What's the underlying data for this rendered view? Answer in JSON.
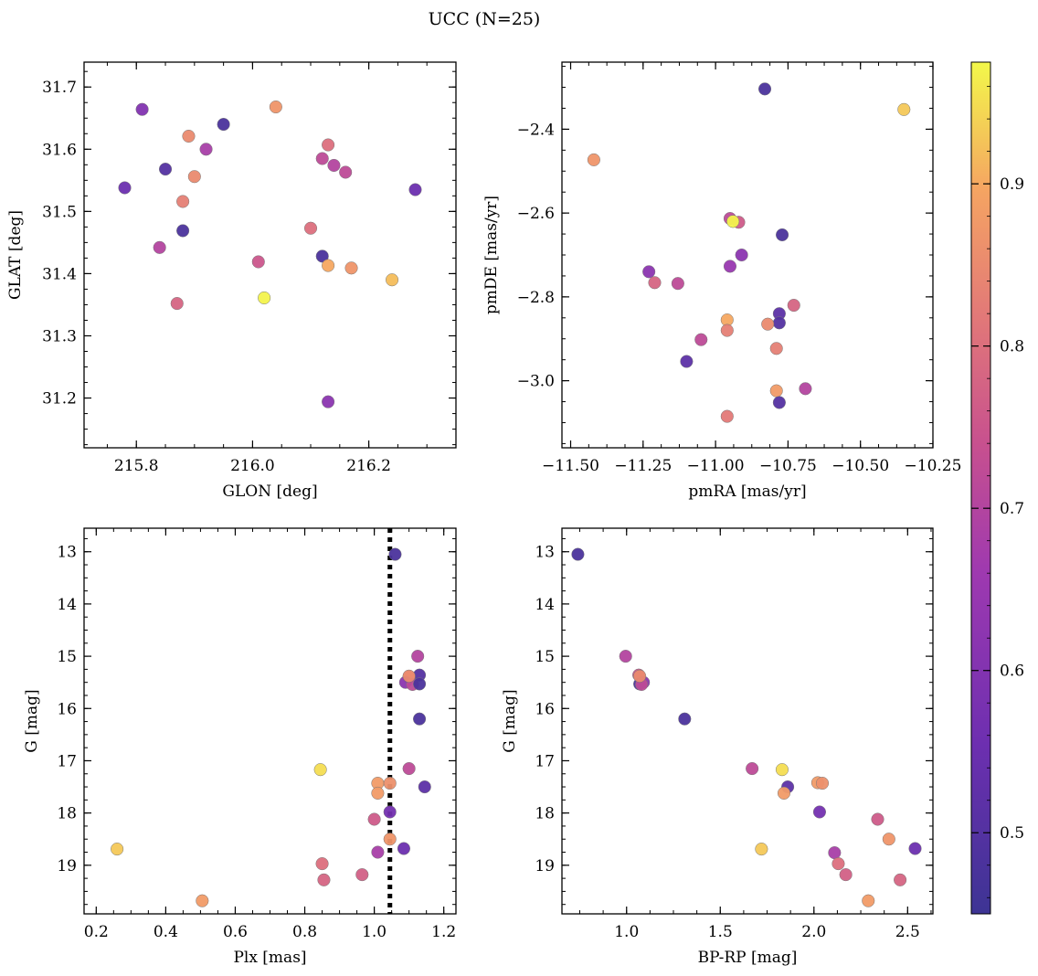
{
  "title": "UCC (N=25)",
  "colorbar": {
    "range": [
      0.45,
      0.975
    ],
    "ticks": [
      0.5,
      0.6,
      0.7,
      0.8,
      0.9
    ]
  },
  "chart_data": [
    {
      "type": "scatter",
      "xlabel": "GLON [deg]",
      "ylabel": "GLAT [deg]",
      "xlim": [
        215.71,
        216.35
      ],
      "ylim": [
        31.12,
        31.74
      ],
      "y_inverted": false,
      "xticks": [
        "215.8",
        "216.0",
        "216.2"
      ],
      "xtick_values": [
        215.8,
        216.0,
        216.2
      ],
      "yticks": [
        "31.2",
        "31.3",
        "31.4",
        "31.5",
        "31.6",
        "31.7"
      ],
      "ytick_values": [
        31.2,
        31.3,
        31.4,
        31.5,
        31.6,
        31.7
      ],
      "points": [
        {
          "x": 215.81,
          "y": 31.664,
          "c": 0.6
        },
        {
          "x": 215.78,
          "y": 31.538,
          "c": 0.55
        },
        {
          "x": 215.85,
          "y": 31.568,
          "c": 0.5
        },
        {
          "x": 215.84,
          "y": 31.442,
          "c": 0.7
        },
        {
          "x": 215.89,
          "y": 31.621,
          "c": 0.85
        },
        {
          "x": 215.92,
          "y": 31.6,
          "c": 0.68
        },
        {
          "x": 215.9,
          "y": 31.556,
          "c": 0.85
        },
        {
          "x": 215.88,
          "y": 31.516,
          "c": 0.83
        },
        {
          "x": 215.88,
          "y": 31.469,
          "c": 0.48
        },
        {
          "x": 215.87,
          "y": 31.352,
          "c": 0.78
        },
        {
          "x": 215.95,
          "y": 31.64,
          "c": 0.48
        },
        {
          "x": 216.04,
          "y": 31.668,
          "c": 0.87
        },
        {
          "x": 216.01,
          "y": 31.419,
          "c": 0.75
        },
        {
          "x": 216.02,
          "y": 31.361,
          "c": 0.97
        },
        {
          "x": 216.13,
          "y": 31.607,
          "c": 0.8
        },
        {
          "x": 216.12,
          "y": 31.585,
          "c": 0.72
        },
        {
          "x": 216.14,
          "y": 31.574,
          "c": 0.7
        },
        {
          "x": 216.16,
          "y": 31.563,
          "c": 0.72
        },
        {
          "x": 216.1,
          "y": 31.473,
          "c": 0.8
        },
        {
          "x": 216.12,
          "y": 31.428,
          "c": 0.48
        },
        {
          "x": 216.13,
          "y": 31.413,
          "c": 0.9
        },
        {
          "x": 216.17,
          "y": 31.409,
          "c": 0.87
        },
        {
          "x": 216.24,
          "y": 31.39,
          "c": 0.92
        },
        {
          "x": 216.28,
          "y": 31.535,
          "c": 0.55
        },
        {
          "x": 216.13,
          "y": 31.194,
          "c": 0.62
        }
      ]
    },
    {
      "type": "scatter",
      "xlabel": "pmRA [mas/yr]",
      "ylabel": "pmDE [mas/yr]",
      "xlim": [
        -11.53,
        -10.25
      ],
      "ylim": [
        -3.16,
        -2.24
      ],
      "y_inverted": false,
      "xticks": [
        "−11.50",
        "−11.25",
        "−11.00",
        "−10.75",
        "−10.50",
        "−10.25"
      ],
      "xtick_values": [
        -11.5,
        -11.25,
        -11.0,
        -10.75,
        -10.5,
        -10.25
      ],
      "yticks": [
        "−2.4",
        "−2.6",
        "−2.8",
        "−3.0"
      ],
      "ytick_values": [
        -2.4,
        -2.6,
        -2.8,
        -3.0
      ],
      "points": [
        {
          "x": -10.83,
          "y": -2.304,
          "c": 0.48
        },
        {
          "x": -10.35,
          "y": -2.353,
          "c": 0.93
        },
        {
          "x": -11.42,
          "y": -2.473,
          "c": 0.87
        },
        {
          "x": -10.95,
          "y": -2.613,
          "c": 0.72
        },
        {
          "x": -10.92,
          "y": -2.622,
          "c": 0.76
        },
        {
          "x": -10.94,
          "y": -2.62,
          "c": 0.97
        },
        {
          "x": -10.77,
          "y": -2.652,
          "c": 0.48
        },
        {
          "x": -10.95,
          "y": -2.727,
          "c": 0.65
        },
        {
          "x": -10.91,
          "y": -2.7,
          "c": 0.62
        },
        {
          "x": -11.23,
          "y": -2.74,
          "c": 0.62
        },
        {
          "x": -11.21,
          "y": -2.766,
          "c": 0.78
        },
        {
          "x": -11.13,
          "y": -2.768,
          "c": 0.72
        },
        {
          "x": -10.73,
          "y": -2.82,
          "c": 0.78
        },
        {
          "x": -10.78,
          "y": -2.84,
          "c": 0.52
        },
        {
          "x": -10.78,
          "y": -2.862,
          "c": 0.5
        },
        {
          "x": -10.82,
          "y": -2.865,
          "c": 0.85
        },
        {
          "x": -10.96,
          "y": -2.855,
          "c": 0.9
        },
        {
          "x": -10.96,
          "y": -2.88,
          "c": 0.83
        },
        {
          "x": -11.05,
          "y": -2.902,
          "c": 0.72
        },
        {
          "x": -10.79,
          "y": -2.923,
          "c": 0.83
        },
        {
          "x": -11.1,
          "y": -2.954,
          "c": 0.52
        },
        {
          "x": -10.69,
          "y": -3.019,
          "c": 0.7
        },
        {
          "x": -10.79,
          "y": -3.024,
          "c": 0.88
        },
        {
          "x": -10.78,
          "y": -3.052,
          "c": 0.5
        },
        {
          "x": -10.96,
          "y": -3.085,
          "c": 0.82
        }
      ]
    },
    {
      "type": "scatter",
      "xlabel": "Plx [mas]",
      "ylabel": "G [mag]",
      "xlim": [
        0.165,
        1.235
      ],
      "ylim": [
        12.55,
        19.93
      ],
      "y_inverted": true,
      "vline": 1.045,
      "xticks": [
        "0.2",
        "0.4",
        "0.6",
        "0.8",
        "1.0",
        "1.2"
      ],
      "xtick_values": [
        0.2,
        0.4,
        0.6,
        0.8,
        1.0,
        1.2
      ],
      "yticks": [
        "13",
        "14",
        "15",
        "16",
        "17",
        "18",
        "19"
      ],
      "ytick_values": [
        13,
        14,
        15,
        16,
        17,
        18,
        19
      ],
      "points": [
        {
          "x": 1.06,
          "y": 13.05,
          "c": 0.48
        },
        {
          "x": 1.125,
          "y": 15.0,
          "c": 0.7
        },
        {
          "x": 1.13,
          "y": 15.36,
          "c": 0.5
        },
        {
          "x": 1.1,
          "y": 15.4,
          "c": 0.87
        },
        {
          "x": 1.09,
          "y": 15.5,
          "c": 0.62
        },
        {
          "x": 1.11,
          "y": 15.54,
          "c": 0.72
        },
        {
          "x": 1.13,
          "y": 15.53,
          "c": 0.48
        },
        {
          "x": 1.13,
          "y": 16.2,
          "c": 0.48
        },
        {
          "x": 1.1,
          "y": 17.15,
          "c": 0.72
        },
        {
          "x": 0.845,
          "y": 17.17,
          "c": 0.95
        },
        {
          "x": 1.145,
          "y": 17.5,
          "c": 0.52
        },
        {
          "x": 1.01,
          "y": 17.43,
          "c": 0.88
        },
        {
          "x": 1.045,
          "y": 17.43,
          "c": 0.86
        },
        {
          "x": 1.01,
          "y": 17.62,
          "c": 0.88
        },
        {
          "x": 1.045,
          "y": 17.98,
          "c": 0.57
        },
        {
          "x": 1.0,
          "y": 18.12,
          "c": 0.76
        },
        {
          "x": 1.045,
          "y": 18.5,
          "c": 0.87
        },
        {
          "x": 1.01,
          "y": 18.75,
          "c": 0.68
        },
        {
          "x": 1.085,
          "y": 18.68,
          "c": 0.55
        },
        {
          "x": 0.26,
          "y": 18.69,
          "c": 0.93
        },
        {
          "x": 0.85,
          "y": 18.97,
          "c": 0.8
        },
        {
          "x": 0.855,
          "y": 19.28,
          "c": 0.78
        },
        {
          "x": 0.965,
          "y": 19.18,
          "c": 0.77
        },
        {
          "x": 0.505,
          "y": 19.68,
          "c": 0.88
        },
        {
          "x": 1.1,
          "y": 15.38,
          "c": 0.85
        }
      ]
    },
    {
      "type": "scatter",
      "xlabel": "BP-RP [mag]",
      "ylabel": "G [mag]",
      "xlim": [
        0.655,
        2.635
      ],
      "ylim": [
        12.55,
        19.93
      ],
      "y_inverted": true,
      "xticks": [
        "1.0",
        "1.5",
        "2.0",
        "2.5"
      ],
      "xtick_values": [
        1.0,
        1.5,
        2.0,
        2.5
      ],
      "yticks": [
        "13",
        "14",
        "15",
        "16",
        "17",
        "18",
        "19"
      ],
      "ytick_values": [
        13,
        14,
        15,
        16,
        17,
        18,
        19
      ],
      "points": [
        {
          "x": 0.74,
          "y": 13.05,
          "c": 0.48
        },
        {
          "x": 0.995,
          "y": 15.0,
          "c": 0.7
        },
        {
          "x": 1.065,
          "y": 15.36,
          "c": 0.75
        },
        {
          "x": 1.07,
          "y": 15.53,
          "c": 0.48
        },
        {
          "x": 1.09,
          "y": 15.5,
          "c": 0.62
        },
        {
          "x": 1.08,
          "y": 15.54,
          "c": 0.72
        },
        {
          "x": 1.07,
          "y": 15.38,
          "c": 0.85
        },
        {
          "x": 1.31,
          "y": 16.2,
          "c": 0.48
        },
        {
          "x": 1.67,
          "y": 17.15,
          "c": 0.72
        },
        {
          "x": 1.83,
          "y": 17.17,
          "c": 0.95
        },
        {
          "x": 1.86,
          "y": 17.5,
          "c": 0.52
        },
        {
          "x": 2.02,
          "y": 17.42,
          "c": 0.88
        },
        {
          "x": 2.045,
          "y": 17.43,
          "c": 0.86
        },
        {
          "x": 1.84,
          "y": 17.62,
          "c": 0.88
        },
        {
          "x": 2.03,
          "y": 17.98,
          "c": 0.57
        },
        {
          "x": 2.34,
          "y": 18.12,
          "c": 0.76
        },
        {
          "x": 2.4,
          "y": 18.5,
          "c": 0.87
        },
        {
          "x": 2.11,
          "y": 18.76,
          "c": 0.68
        },
        {
          "x": 2.54,
          "y": 18.68,
          "c": 0.55
        },
        {
          "x": 1.72,
          "y": 18.69,
          "c": 0.93
        },
        {
          "x": 2.13,
          "y": 18.97,
          "c": 0.8
        },
        {
          "x": 2.46,
          "y": 19.28,
          "c": 0.78
        },
        {
          "x": 2.17,
          "y": 19.18,
          "c": 0.77
        },
        {
          "x": 2.29,
          "y": 19.68,
          "c": 0.88
        }
      ]
    }
  ]
}
